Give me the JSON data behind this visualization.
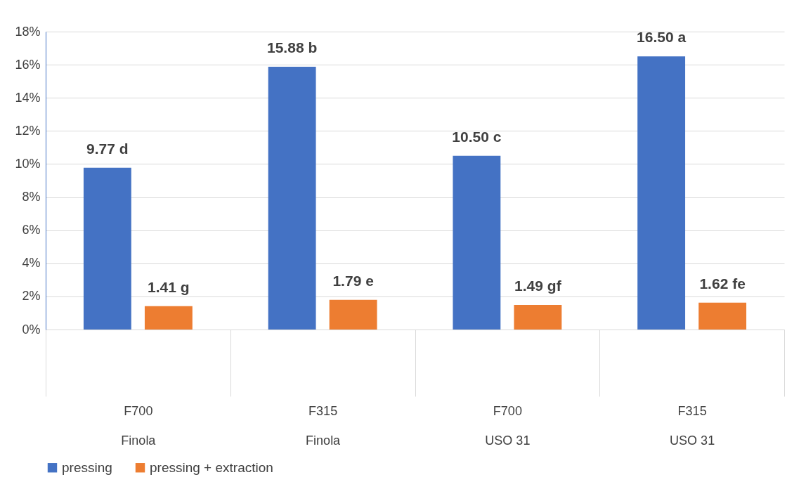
{
  "chart_data": {
    "type": "bar",
    "categories": [
      "F700\nFinola",
      "F315\nFinola",
      "F700\nUSO 31",
      "F315\nUSO 31"
    ],
    "series": [
      {
        "name": "pressing",
        "color": "#4472c4",
        "values": [
          9.77,
          15.88,
          10.5,
          16.5
        ],
        "value_labels": [
          "9.77 d",
          "15.88 b",
          "10.50 c",
          "16.50 a"
        ]
      },
      {
        "name": "pressing + extraction",
        "color": "#ed7d31",
        "values": [
          1.41,
          1.79,
          1.49,
          1.62
        ],
        "value_labels": [
          "1.41 g",
          "1.79 e",
          "1.49 gf",
          "1.62 fe"
        ]
      }
    ],
    "ylim": [
      0,
      18
    ],
    "yticks": [
      {
        "value": 0,
        "label": "0%"
      },
      {
        "value": 2,
        "label": "2%"
      },
      {
        "value": 4,
        "label": "4%"
      },
      {
        "value": 6,
        "label": "6%"
      },
      {
        "value": 8,
        "label": "8%"
      },
      {
        "value": 10,
        "label": "10%"
      },
      {
        "value": 12,
        "label": "12%"
      },
      {
        "value": 14,
        "label": "14%"
      },
      {
        "value": 16,
        "label": "16%"
      },
      {
        "value": 18,
        "label": "18%"
      }
    ],
    "grid": "y",
    "legend": "bottom"
  }
}
